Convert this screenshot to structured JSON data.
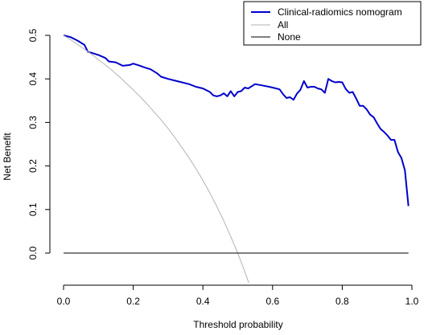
{
  "chart_data": {
    "type": "line",
    "title": "",
    "xlabel": "Threshold probability",
    "ylabel": "Net Benefit",
    "xlim": [
      0.0,
      1.0
    ],
    "ylim": [
      -0.07,
      0.52
    ],
    "x_ticks": [
      0.0,
      0.2,
      0.4,
      0.6,
      0.8,
      1.0
    ],
    "x_tick_labels": [
      "0.0",
      "0.2",
      "0.4",
      "0.6",
      "0.8",
      "1.0"
    ],
    "y_ticks": [
      0.0,
      0.1,
      0.2,
      0.3,
      0.4,
      0.5
    ],
    "y_tick_labels": [
      "0.0",
      "0.1",
      "0.2",
      "0.3",
      "0.4",
      "0.5"
    ],
    "grid": false,
    "legend_position": "top-right",
    "series": [
      {
        "name": "Clinical-radiomics nomogram",
        "color": "#0000cc",
        "x": [
          0.0,
          0.02,
          0.04,
          0.06,
          0.07,
          0.08,
          0.1,
          0.12,
          0.13,
          0.15,
          0.17,
          0.19,
          0.2,
          0.22,
          0.23,
          0.25,
          0.27,
          0.28,
          0.3,
          0.32,
          0.34,
          0.36,
          0.38,
          0.4,
          0.42,
          0.43,
          0.44,
          0.45,
          0.46,
          0.47,
          0.48,
          0.49,
          0.5,
          0.51,
          0.52,
          0.53,
          0.55,
          0.57,
          0.59,
          0.6,
          0.62,
          0.63,
          0.64,
          0.65,
          0.66,
          0.67,
          0.68,
          0.69,
          0.7,
          0.71,
          0.72,
          0.73,
          0.74,
          0.75,
          0.76,
          0.77,
          0.78,
          0.79,
          0.8,
          0.81,
          0.82,
          0.83,
          0.84,
          0.85,
          0.86,
          0.87,
          0.88,
          0.89,
          0.9,
          0.91,
          0.92,
          0.93,
          0.94,
          0.95,
          0.96,
          0.97,
          0.98,
          0.99
        ],
        "y": [
          0.5,
          0.496,
          0.488,
          0.478,
          0.462,
          0.46,
          0.455,
          0.448,
          0.44,
          0.438,
          0.43,
          0.432,
          0.435,
          0.43,
          0.427,
          0.422,
          0.412,
          0.405,
          0.4,
          0.396,
          0.392,
          0.388,
          0.382,
          0.378,
          0.37,
          0.362,
          0.36,
          0.362,
          0.367,
          0.36,
          0.372,
          0.36,
          0.37,
          0.372,
          0.38,
          0.378,
          0.388,
          0.385,
          0.382,
          0.38,
          0.376,
          0.365,
          0.356,
          0.358,
          0.352,
          0.366,
          0.375,
          0.395,
          0.38,
          0.382,
          0.382,
          0.378,
          0.376,
          0.368,
          0.4,
          0.395,
          0.392,
          0.393,
          0.392,
          0.377,
          0.368,
          0.37,
          0.355,
          0.338,
          0.338,
          0.33,
          0.318,
          0.312,
          0.298,
          0.285,
          0.278,
          0.27,
          0.26,
          0.26,
          0.232,
          0.218,
          0.19,
          0.108
        ]
      },
      {
        "name": "All",
        "color": "#b3b3b3",
        "x": [
          0.0,
          0.02,
          0.04,
          0.06,
          0.08,
          0.1,
          0.12,
          0.14,
          0.16,
          0.18,
          0.2,
          0.22,
          0.24,
          0.26,
          0.28,
          0.3,
          0.32,
          0.34,
          0.36,
          0.38,
          0.4,
          0.42,
          0.44,
          0.46,
          0.48,
          0.5,
          0.52,
          0.54
        ],
        "y": [
          0.5,
          0.49,
          0.479,
          0.468,
          0.457,
          0.444,
          0.432,
          0.419,
          0.405,
          0.39,
          0.375,
          0.359,
          0.342,
          0.324,
          0.306,
          0.286,
          0.265,
          0.242,
          0.219,
          0.194,
          0.167,
          0.138,
          0.107,
          0.074,
          0.038,
          0.0,
          -0.042,
          -0.087
        ]
      },
      {
        "name": "None",
        "color": "#000000",
        "x": [
          0.0,
          0.99
        ],
        "y": [
          0.0,
          0.0
        ]
      }
    ]
  }
}
